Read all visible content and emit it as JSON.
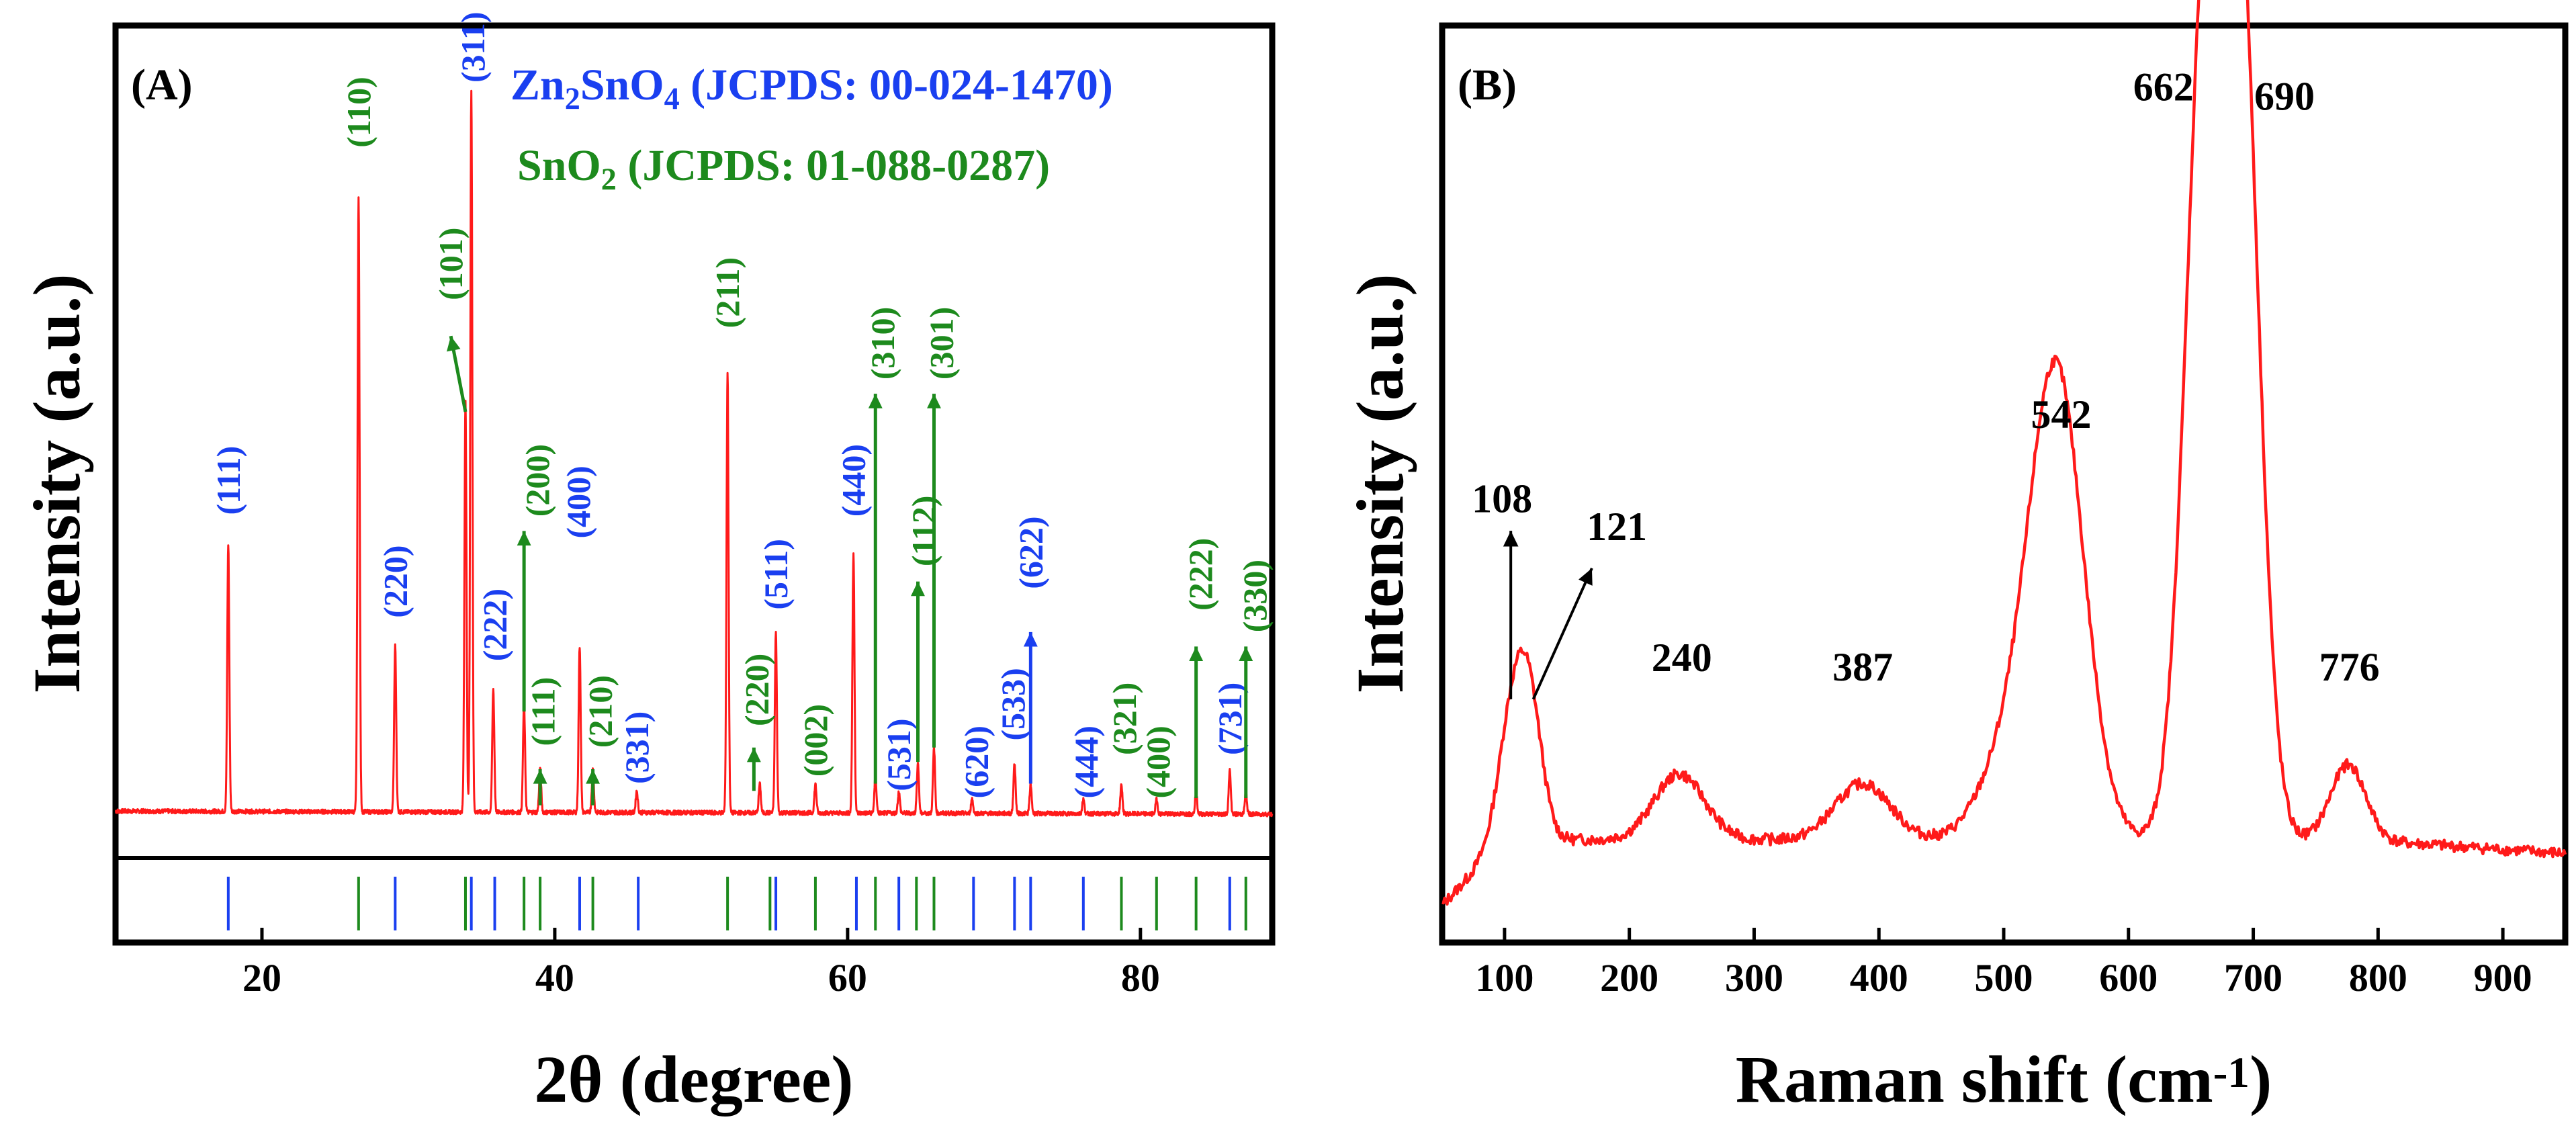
{
  "colors": {
    "zn": "#1a3ff0",
    "sno2": "#1d8a1d",
    "curve": "#ff1a1a",
    "axis": "#000000"
  },
  "chart_data": [
    {
      "type": "line",
      "panel_label": "(A)",
      "xlabel": "2θ (degree)",
      "ylabel": "Intensity (a.u.)",
      "xlim": [
        10,
        89
      ],
      "ylim": [
        -0.17,
        1.1
      ],
      "xticks": [
        20,
        40,
        60,
        80
      ],
      "grid": false,
      "legend": {
        "position": "top",
        "entries": [
          {
            "html": "Zn<tspan font-size='70%' dy='14'>2</tspan><tspan dy='-14'>SnO</tspan><tspan font-size='70%' dy='14'>4</tspan><tspan dy='-14'> (JCPDS: 00-024-1470)</tspan>",
            "plain": "Zn2SnO4 (JCPDS: 00-024-1470)",
            "color": "#1a3ff0"
          },
          {
            "html": "SnO<tspan font-size='70%' dy='14'>2</tspan><tspan dy='-14'> (JCPDS: 01-088-0287)</tspan>",
            "plain": "SnO2 (JCPDS: 01-088-0287)",
            "color": "#1d8a1d"
          }
        ]
      },
      "series": [
        {
          "curve_type": "peaks",
          "color": "#ff1a1a",
          "baseline": 0.012,
          "peaks": [
            [
              17.7,
              0.37
            ],
            [
              26.6,
              0.85
            ],
            [
              29.1,
              0.23
            ],
            [
              33.9,
              0.57
            ],
            [
              34.3,
              1.0
            ],
            [
              35.8,
              0.17
            ],
            [
              37.9,
              0.15
            ],
            [
              39.0,
              0.06
            ],
            [
              41.7,
              0.23
            ],
            [
              42.6,
              0.06
            ],
            [
              45.6,
              0.03
            ],
            [
              51.8,
              0.61
            ],
            [
              54.0,
              0.04
            ],
            [
              55.1,
              0.25
            ],
            [
              57.8,
              0.04
            ],
            [
              60.4,
              0.36
            ],
            [
              61.9,
              0.05
            ],
            [
              63.5,
              0.03
            ],
            [
              64.8,
              0.07
            ],
            [
              65.9,
              0.09
            ],
            [
              68.5,
              0.02
            ],
            [
              71.4,
              0.07
            ],
            [
              72.5,
              0.04
            ],
            [
              76.1,
              0.02
            ],
            [
              78.7,
              0.04
            ],
            [
              81.1,
              0.02
            ],
            [
              83.8,
              0.03
            ],
            [
              86.1,
              0.06
            ],
            [
              87.2,
              0.03
            ]
          ]
        }
      ],
      "reference_lines_zn": [
        17.7,
        29.1,
        34.3,
        35.9,
        41.7,
        45.7,
        55.1,
        60.6,
        63.5,
        68.6,
        71.4,
        72.5,
        76.1,
        86.1
      ],
      "reference_lines_sno2": [
        26.6,
        33.9,
        37.9,
        39.0,
        42.6,
        51.8,
        54.7,
        57.8,
        61.9,
        64.7,
        65.9,
        78.7,
        81.1,
        83.8,
        87.2
      ],
      "annotations": [
        {
          "text": "(111)",
          "x": 17.7,
          "y": 0.47,
          "series": "zn"
        },
        {
          "text": "(110)",
          "x": 26.6,
          "y": 0.98,
          "series": "sno2"
        },
        {
          "text": "(220)",
          "x": 29.1,
          "y": 0.33,
          "series": "zn"
        },
        {
          "text": "(101)",
          "x": 32.9,
          "y": 0.77,
          "series": "sno2",
          "arrow": {
            "from": [
              33.9,
              0.565
            ],
            "to": [
              32.9,
              0.67
            ]
          }
        },
        {
          "text": "(311)",
          "x": 34.4,
          "y": 1.07,
          "series": "zn"
        },
        {
          "text": "(222)",
          "x": 35.9,
          "y": 0.27,
          "series": "zn"
        },
        {
          "text": "(200)",
          "x": 38.8,
          "y": 0.47,
          "series": "sno2",
          "arrow": {
            "from": [
              37.9,
              0.15
            ],
            "to": [
              37.9,
              0.4
            ]
          }
        },
        {
          "text": "(111)",
          "x": 39.2,
          "y": 0.15,
          "series": "sno2",
          "arrow": {
            "from": [
              39.0,
              0.02
            ],
            "to": [
              39.0,
              0.07
            ]
          }
        },
        {
          "text": "(400)",
          "x": 41.6,
          "y": 0.44,
          "series": "zn"
        },
        {
          "text": "(210)",
          "x": 43.1,
          "y": 0.15,
          "series": "sno2",
          "arrow": {
            "from": [
              42.6,
              0.02
            ],
            "to": [
              42.6,
              0.07
            ]
          }
        },
        {
          "text": "(331)",
          "x": 45.6,
          "y": 0.1,
          "series": "zn"
        },
        {
          "text": "(211)",
          "x": 51.8,
          "y": 0.73,
          "series": "sno2"
        },
        {
          "text": "(220)",
          "x": 53.8,
          "y": 0.18,
          "series": "sno2",
          "arrow": {
            "from": [
              53.6,
              0.04
            ],
            "to": [
              53.6,
              0.1
            ]
          }
        },
        {
          "text": "(511)",
          "x": 55.1,
          "y": 0.34,
          "series": "zn"
        },
        {
          "text": "(002)",
          "x": 57.8,
          "y": 0.11,
          "series": "sno2"
        },
        {
          "text": "(440)",
          "x": 60.4,
          "y": 0.47,
          "series": "zn"
        },
        {
          "text": "(310)",
          "x": 62.4,
          "y": 0.66,
          "series": "sno2",
          "arrow": {
            "from": [
              61.9,
              0.05
            ],
            "to": [
              61.9,
              0.59
            ]
          }
        },
        {
          "text": "(531)",
          "x": 63.5,
          "y": 0.09,
          "series": "zn"
        },
        {
          "text": "(112)",
          "x": 65.2,
          "y": 0.4,
          "series": "sno2",
          "arrow": {
            "from": [
              64.8,
              0.08
            ],
            "to": [
              64.8,
              0.33
            ]
          }
        },
        {
          "text": "(301)",
          "x": 66.4,
          "y": 0.66,
          "series": "sno2",
          "arrow": {
            "from": [
              65.9,
              0.1
            ],
            "to": [
              65.9,
              0.59
            ]
          }
        },
        {
          "text": "(620)",
          "x": 68.8,
          "y": 0.08,
          "series": "zn"
        },
        {
          "text": "(533)",
          "x": 71.3,
          "y": 0.16,
          "series": "zn"
        },
        {
          "text": "(622)",
          "x": 72.5,
          "y": 0.37,
          "series": "zn",
          "arrow": {
            "from": [
              72.5,
              0.05
            ],
            "to": [
              72.5,
              0.26
            ]
          }
        },
        {
          "text": "(444)",
          "x": 76.3,
          "y": 0.08,
          "series": "zn"
        },
        {
          "text": "(321)",
          "x": 78.9,
          "y": 0.14,
          "series": "sno2"
        },
        {
          "text": "(400)",
          "x": 81.2,
          "y": 0.08,
          "series": "sno2"
        },
        {
          "text": "(222)",
          "x": 84.1,
          "y": 0.34,
          "series": "sno2",
          "arrow": {
            "from": [
              83.8,
              0.03
            ],
            "to": [
              83.8,
              0.24
            ]
          }
        },
        {
          "text": "(731)",
          "x": 86.1,
          "y": 0.14,
          "series": "zn"
        },
        {
          "text": "(330)",
          "x": 87.8,
          "y": 0.31,
          "series": "sno2",
          "arrow": {
            "from": [
              87.2,
              0.03
            ],
            "to": [
              87.2,
              0.24
            ]
          }
        }
      ]
    },
    {
      "type": "line",
      "panel_label": "(B)",
      "xlabel": "Raman shift (cm<tspan font-size='65%' dy='-22'>-1</tspan><tspan dy='22'>)</tspan>",
      "xlabel_plain": "Raman shift (cm-1)",
      "ylabel": "Intensity (a.u.)",
      "xlim": [
        50,
        950
      ],
      "ylim": [
        0.1,
        1.08
      ],
      "xticks": [
        100,
        200,
        300,
        400,
        500,
        600,
        700,
        800,
        900
      ],
      "grid": false,
      "series": [
        {
          "curve_type": "raman",
          "color": "#ff1a1a",
          "baseline": 0.21,
          "peaks": [
            [
              108,
              0.14,
              12
            ],
            [
              121,
              0.1,
              10
            ],
            [
              240,
              0.07,
              20
            ],
            [
              387,
              0.06,
              22
            ],
            [
              500,
              0.07,
              22
            ],
            [
              542,
              0.5,
              22
            ],
            [
              662,
              0.89,
              16
            ],
            [
              690,
              0.85,
              15
            ],
            [
              776,
              0.08,
              14
            ]
          ]
        }
      ],
      "annotations": [
        {
          "text": "108",
          "x": 98,
          "y": 0.56,
          "arrow": {
            "from": [
              105,
              0.36
            ],
            "to": [
              105,
              0.54
            ]
          }
        },
        {
          "text": "121",
          "x": 190,
          "y": 0.53,
          "arrow": {
            "from": [
              123,
              0.36
            ],
            "to": [
              170,
              0.5
            ]
          }
        },
        {
          "text": "240",
          "x": 242,
          "y": 0.39
        },
        {
          "text": "387",
          "x": 387,
          "y": 0.38
        },
        {
          "text": "542",
          "x": 546,
          "y": 0.65
        },
        {
          "text": "662",
          "x": 628,
          "y": 1.0
        },
        {
          "text": "690",
          "x": 725,
          "y": 0.99
        },
        {
          "text": "776",
          "x": 777,
          "y": 0.38
        }
      ]
    }
  ]
}
